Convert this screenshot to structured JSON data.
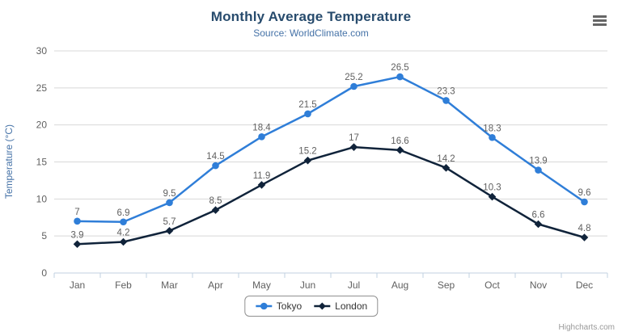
{
  "title": "Monthly Average Temperature",
  "subtitle": "Source: WorldClimate.com",
  "credits": "Highcharts.com",
  "menu_icon": "hamburger-icon",
  "colors": {
    "title": "#274b6d",
    "subtitle": "#4572A7",
    "axis_title": "#4572A7",
    "tick_label": "#606060",
    "data_label": "#606060",
    "gridline": "#D8D8D8",
    "axis_line": "#C0D0E0",
    "tokyo": "#2f7ed8",
    "london": "#10233a",
    "legend_border": "#909090",
    "legend_text": "#333333",
    "credits_text": "#999999",
    "menu": "#666666"
  },
  "chart_data": {
    "type": "line",
    "title": "Monthly Average Temperature",
    "subtitle": "Source: WorldClimate.com",
    "categories": [
      "Jan",
      "Feb",
      "Mar",
      "Apr",
      "May",
      "Jun",
      "Jul",
      "Aug",
      "Sep",
      "Oct",
      "Nov",
      "Dec"
    ],
    "series": [
      {
        "name": "Tokyo",
        "color": "#2f7ed8",
        "marker": "circle",
        "values": [
          7,
          6.9,
          9.5,
          14.5,
          18.4,
          21.5,
          25.2,
          26.5,
          23.3,
          18.3,
          13.9,
          9.6
        ]
      },
      {
        "name": "London",
        "color": "#10233a",
        "marker": "diamond",
        "values": [
          3.9,
          4.2,
          5.7,
          8.5,
          11.9,
          15.2,
          17,
          16.6,
          14.2,
          10.3,
          6.6,
          4.8
        ]
      }
    ],
    "xlabel": "",
    "ylabel": "Temperature (°C)",
    "ylim": [
      0,
      30
    ],
    "ytick_interval": 5,
    "yticks": [
      0,
      5,
      10,
      15,
      20,
      25,
      30
    ],
    "grid": true,
    "data_labels": true,
    "legend_position": "bottom-center"
  }
}
